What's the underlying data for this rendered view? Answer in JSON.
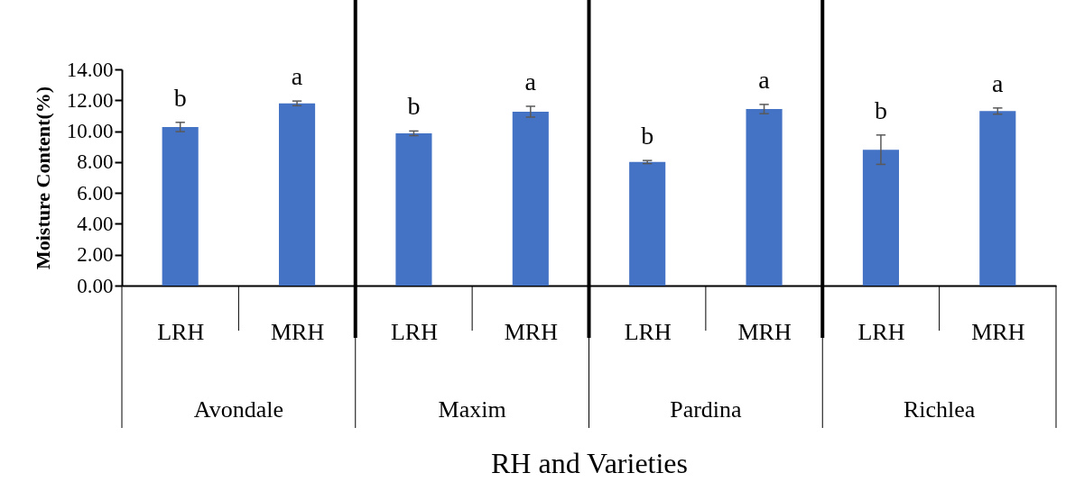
{
  "chart_data": {
    "type": "bar",
    "xlabel": "RH and Varieties",
    "ylabel": "Moisture Content(%)",
    "categories": [
      "LRH",
      "MRH",
      "LRH",
      "MRH",
      "LRH",
      "MRH",
      "LRH",
      "MRH"
    ],
    "values": [
      10.27,
      11.8,
      9.86,
      11.26,
      8.0,
      11.43,
      8.8,
      11.3
    ],
    "errors": [
      0.3,
      0.15,
      0.15,
      0.35,
      0.1,
      0.3,
      0.95,
      0.2
    ],
    "color": "#4472c4",
    "ylim": [
      0,
      14
    ],
    "yticks": [
      {
        "value": 0,
        "label": "0.00"
      },
      {
        "value": 2,
        "label": "2.00"
      },
      {
        "value": 4,
        "label": "4.00"
      },
      {
        "value": 6,
        "label": "6.00"
      },
      {
        "value": 8,
        "label": "8.00"
      },
      {
        "value": 10,
        "label": "10.00"
      },
      {
        "value": 12,
        "label": "12.00"
      },
      {
        "value": 14,
        "label": "14.00"
      }
    ],
    "grid": false,
    "annotations": [
      "b",
      "a",
      "b",
      "a",
      "b",
      "a",
      "b",
      "a",
      "Avondale",
      "Maxim",
      "Pardina",
      "Richlea"
    ]
  }
}
